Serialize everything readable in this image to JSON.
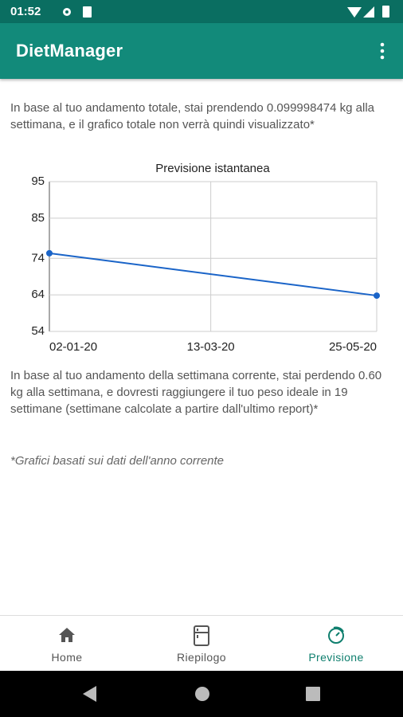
{
  "status_bar": {
    "time": "01:52"
  },
  "app_bar": {
    "title": "DietManager"
  },
  "content": {
    "paragraphs": [
      "In  base al tuo andamento totale, stai prendendo 0.099998474 kg alla settimana, e il grafico totale non verrà quindi visualizzato*",
      "In base al tuo andamento della settimana corrente, stai perdendo 0.60 kg alla settimana, e dovresti raggiungere il tuo peso ideale in 19 settimane (settimane calcolate a partire dall'ultimo report)*"
    ],
    "note": "*Grafici basati sui dati dell'anno corrente"
  },
  "chart_data": {
    "type": "line",
    "title": "Previsione istantanea",
    "series": [
      {
        "name": "Previsione",
        "color": "#1a64c8",
        "x": [
          "02-01-20",
          "25-05-20"
        ],
        "values": [
          75.4,
          63.8
        ]
      }
    ],
    "xlim": [
      "02-01-20",
      "25-05-20"
    ],
    "xticks": [
      "02-01-20",
      "13-03-20",
      "25-05-20"
    ],
    "ylim": [
      54,
      95
    ],
    "yticks": [
      54,
      64,
      74,
      85,
      95
    ],
    "grid": true
  },
  "bottom_nav": {
    "items": [
      "Home",
      "Riepilogo",
      "Previsione"
    ],
    "active": 2
  }
}
